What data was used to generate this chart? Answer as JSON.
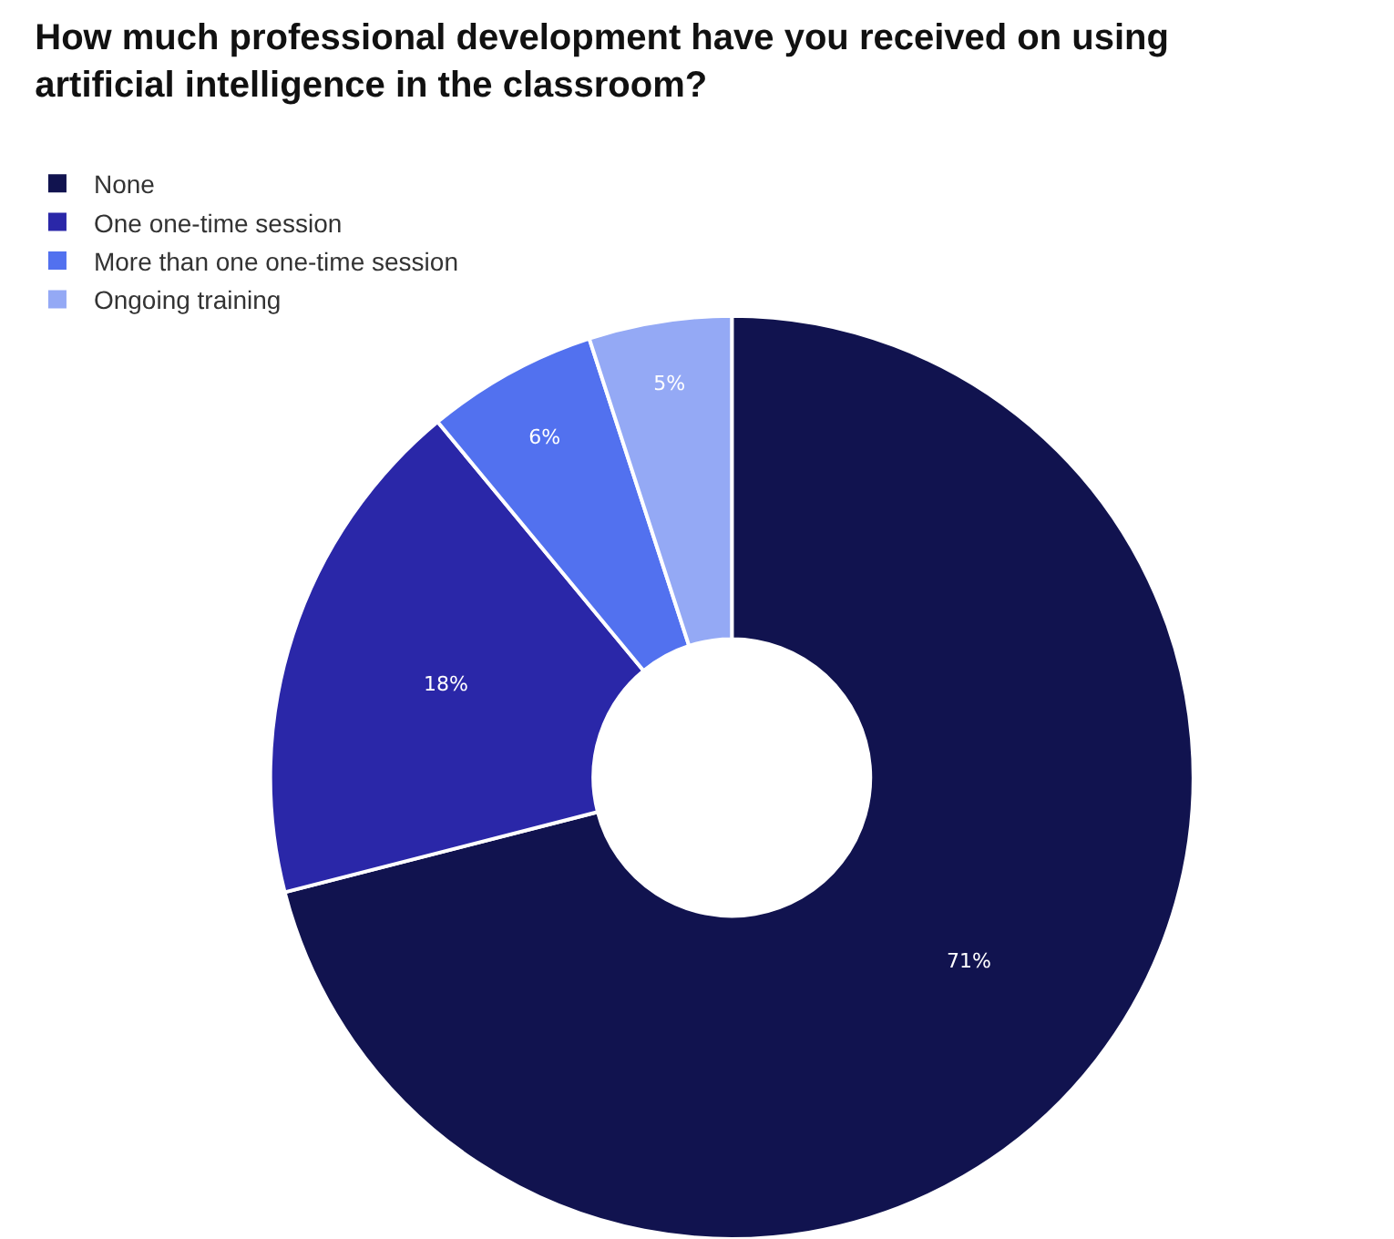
{
  "chart_data": {
    "type": "donut",
    "title": "How much professional development have you received on using artificial intelligence in the classroom?",
    "categories": [
      "None",
      "One one-time session",
      "More than one one-time session",
      "Ongoing training"
    ],
    "values": [
      71,
      18,
      6,
      5
    ],
    "colors": [
      "#11134f",
      "#2a27a8",
      "#5271ef",
      "#94a9f5"
    ],
    "value_labels": [
      "71%",
      "18%",
      "6%",
      "5%"
    ],
    "legend": "top left"
  }
}
